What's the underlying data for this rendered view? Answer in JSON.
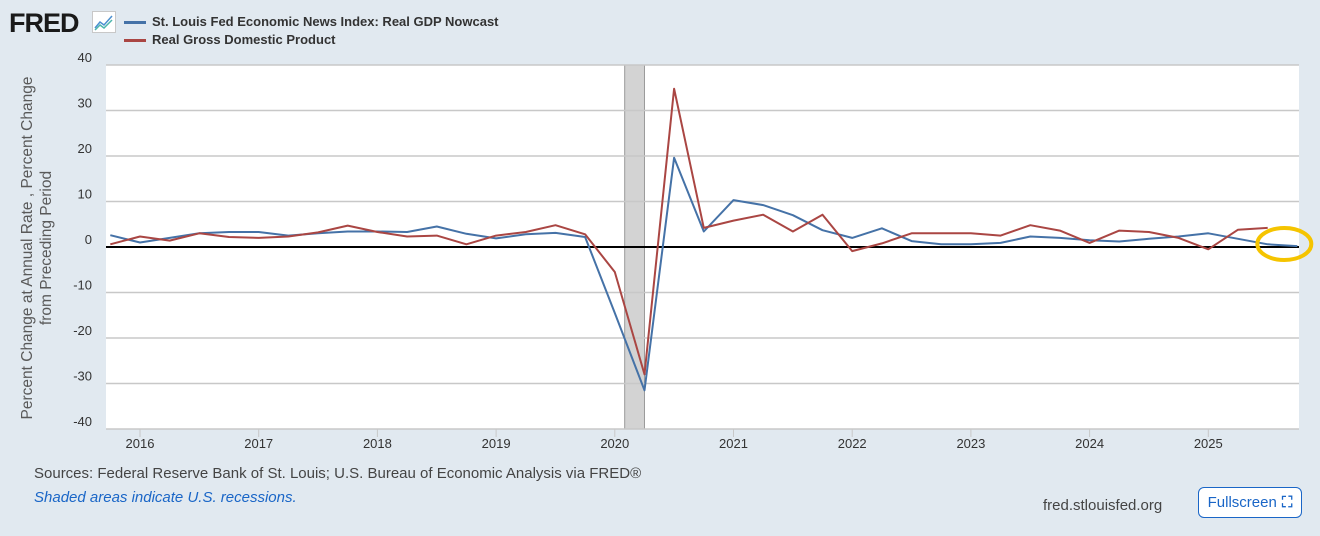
{
  "header": {
    "logo_text": "FRED",
    "logo_icon": "line-chart-icon"
  },
  "chart_data": {
    "type": "line",
    "title": "",
    "ylabel_line1": "Percent Change at Annual Rate , Percent Change",
    "ylabel_line2": "from Preceding Period",
    "xlabel": "",
    "ylim": [
      -40,
      40
    ],
    "yticks": [
      "40",
      "30",
      "20",
      "10",
      "0",
      "-10",
      "-20",
      "-30",
      "-40"
    ],
    "xticks": [
      "2016",
      "2017",
      "2018",
      "2019",
      "2020",
      "2021",
      "2022",
      "2023",
      "2024",
      "2025"
    ],
    "grid": true,
    "legend_placement": "top-left",
    "recessions": [
      {
        "start": "2020-02-01",
        "end": "2020-04-01"
      }
    ],
    "recession_color": "#d3d3d3",
    "series": [
      {
        "name": "St. Louis Fed Economic News Index: Real GDP Nowcast",
        "color": "#4572a7",
        "dates": [
          "2015-10-01",
          "2016-01-01",
          "2016-04-01",
          "2016-07-01",
          "2016-10-01",
          "2017-01-01",
          "2017-04-01",
          "2017-07-01",
          "2017-10-01",
          "2018-01-01",
          "2018-04-01",
          "2018-07-01",
          "2018-10-01",
          "2019-01-01",
          "2019-04-01",
          "2019-07-01",
          "2019-10-01",
          "2020-01-01",
          "2020-04-01",
          "2020-07-01",
          "2020-10-01",
          "2021-01-01",
          "2021-04-01",
          "2021-07-01",
          "2021-10-01",
          "2022-01-01",
          "2022-04-01",
          "2022-07-01",
          "2022-10-01",
          "2023-01-01",
          "2023-04-01",
          "2023-07-01",
          "2023-10-01",
          "2024-01-01",
          "2024-04-01",
          "2024-07-01",
          "2024-10-01",
          "2025-01-01",
          "2025-04-01",
          "2025-07-01",
          "2025-10-01"
        ],
        "values": [
          2.6,
          1.0,
          2.0,
          3.0,
          3.3,
          3.3,
          2.5,
          3.0,
          3.4,
          3.4,
          3.3,
          4.5,
          2.9,
          1.9,
          2.8,
          3.1,
          2.2,
          -14.5,
          -31.5,
          19.6,
          3.4,
          10.3,
          9.2,
          7.0,
          3.7,
          2.0,
          4.1,
          1.3,
          0.6,
          0.6,
          0.9,
          2.3,
          2.0,
          1.5,
          1.2,
          1.8,
          2.3,
          3.0,
          1.8,
          0.6,
          0.2
        ]
      },
      {
        "name": "Real Gross Domestic Product",
        "color": "#aa4643",
        "dates": [
          "2015-10-01",
          "2016-01-01",
          "2016-04-01",
          "2016-07-01",
          "2016-10-01",
          "2017-01-01",
          "2017-04-01",
          "2017-07-01",
          "2017-10-01",
          "2018-01-01",
          "2018-04-01",
          "2018-07-01",
          "2018-10-01",
          "2019-01-01",
          "2019-04-01",
          "2019-07-01",
          "2019-10-01",
          "2020-01-01",
          "2020-04-01",
          "2020-07-01",
          "2020-10-01",
          "2021-01-01",
          "2021-04-01",
          "2021-07-01",
          "2021-10-01",
          "2022-01-01",
          "2022-04-01",
          "2022-07-01",
          "2022-10-01",
          "2023-01-01",
          "2023-04-01",
          "2023-07-01",
          "2023-10-01",
          "2024-01-01",
          "2024-04-01",
          "2024-07-01",
          "2024-10-01",
          "2025-01-01",
          "2025-04-01",
          "2025-07-01"
        ],
        "values": [
          0.6,
          2.3,
          1.4,
          3.0,
          2.2,
          2.0,
          2.3,
          3.2,
          4.7,
          3.3,
          2.3,
          2.5,
          0.6,
          2.5,
          3.3,
          4.8,
          2.8,
          -5.5,
          -28.0,
          34.8,
          4.2,
          5.8,
          7.1,
          3.4,
          7.1,
          -0.9,
          0.8,
          3.0,
          3.0,
          3.0,
          2.5,
          4.8,
          3.6,
          0.9,
          3.6,
          3.3,
          2.0,
          -0.5,
          3.8,
          4.2
        ]
      }
    ],
    "annotation": {
      "shape": "ellipse",
      "color": "#f5c400",
      "at_date": "2025-10-01",
      "at_value": 0
    }
  },
  "footer": {
    "sources": "Sources: Federal Reserve Bank of St. Louis; U.S. Bureau of Economic Analysis via FRED®",
    "recession_note": "Shaded areas indicate U.S. recessions.",
    "site": "fred.stlouisfed.org",
    "fullscreen_label": "Fullscreen",
    "fullscreen_icon": "expand-icon"
  }
}
